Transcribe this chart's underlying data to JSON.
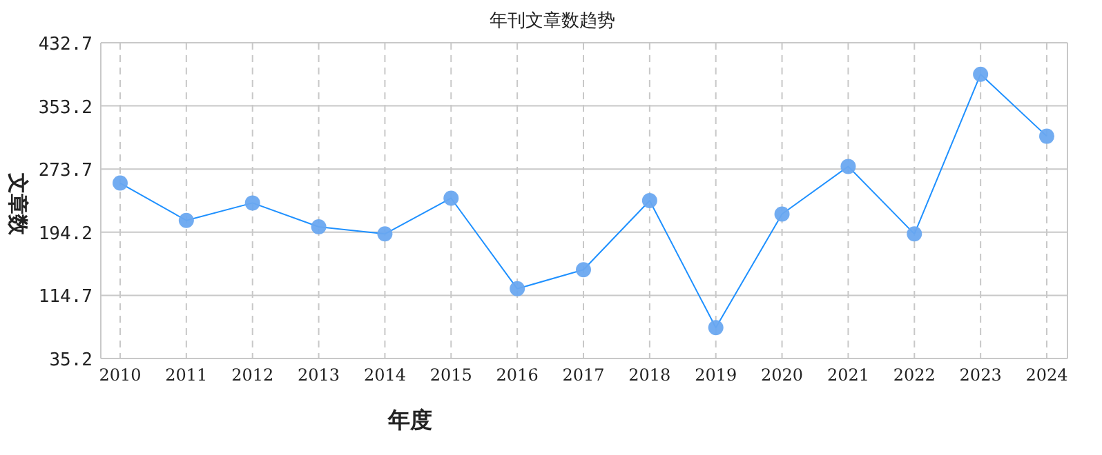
{
  "chart_data": {
    "type": "line",
    "title": "年刊文章数趋势",
    "xlabel": "年度",
    "ylabel": "文章数",
    "categories": [
      "2010",
      "2011",
      "2012",
      "2013",
      "2014",
      "2015",
      "2016",
      "2017",
      "2018",
      "2019",
      "2020",
      "2021",
      "2022",
      "2023",
      "2024"
    ],
    "series": [
      {
        "color": "#1e90ff",
        "values": [
          256,
          209,
          231,
          201,
          192,
          237,
          123,
          147,
          234,
          74,
          217,
          277,
          192,
          393,
          315
        ]
      }
    ],
    "ylim": [
      35.2,
      432.7
    ],
    "yticks": [
      35.2,
      114.7,
      194.2,
      273.7,
      353.2,
      432.7
    ],
    "grid": true,
    "marker": "circle",
    "line_style": "solid"
  }
}
